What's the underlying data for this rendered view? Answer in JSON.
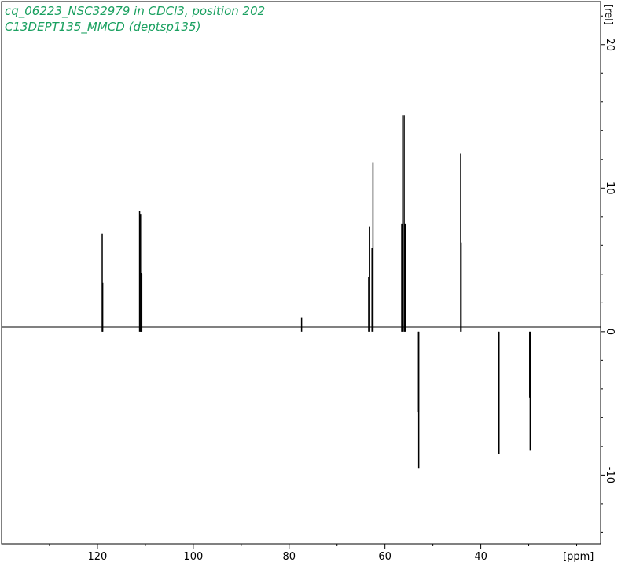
{
  "chart_data": {
    "type": "line",
    "title": "cq_06223_NSC32979 in CDCl3, position 202",
    "subtitle": "C13DEPT135_MMCD (deptsp135)",
    "xlabel": "[ppm]",
    "ylabel": "[rel]",
    "xlim": [
      140,
      15
    ],
    "ylim": [
      -14.8,
      23.0
    ],
    "x_ticks": [
      120,
      100,
      80,
      60,
      40
    ],
    "y_ticks": [
      20,
      10,
      0,
      -10
    ],
    "grid": false,
    "peaks": [
      {
        "x": 119.0,
        "y": 6.8
      },
      {
        "x": 118.9,
        "y": 3.4
      },
      {
        "x": 111.2,
        "y": 8.4
      },
      {
        "x": 111.0,
        "y": 8.2
      },
      {
        "x": 110.9,
        "y": 4.1
      },
      {
        "x": 110.75,
        "y": 4.0
      },
      {
        "x": 77.4,
        "y": 1.0
      },
      {
        "x": 63.4,
        "y": 3.8
      },
      {
        "x": 63.2,
        "y": 7.3
      },
      {
        "x": 62.7,
        "y": 5.8
      },
      {
        "x": 62.5,
        "y": 11.8
      },
      {
        "x": 56.5,
        "y": 7.5
      },
      {
        "x": 56.3,
        "y": 15.1
      },
      {
        "x": 56.0,
        "y": 15.1
      },
      {
        "x": 55.8,
        "y": 7.5
      },
      {
        "x": 53.0,
        "y": -5.6
      },
      {
        "x": 52.95,
        "y": -9.5
      },
      {
        "x": 44.2,
        "y": 12.4
      },
      {
        "x": 44.1,
        "y": 6.2
      },
      {
        "x": 36.3,
        "y": -8.5
      },
      {
        "x": 36.2,
        "y": -8.5
      },
      {
        "x": 29.8,
        "y": -4.6
      },
      {
        "x": 29.7,
        "y": -8.3
      }
    ]
  },
  "colors": {
    "title": "#1aa060",
    "trace": "#000000",
    "axis": "#000000"
  }
}
